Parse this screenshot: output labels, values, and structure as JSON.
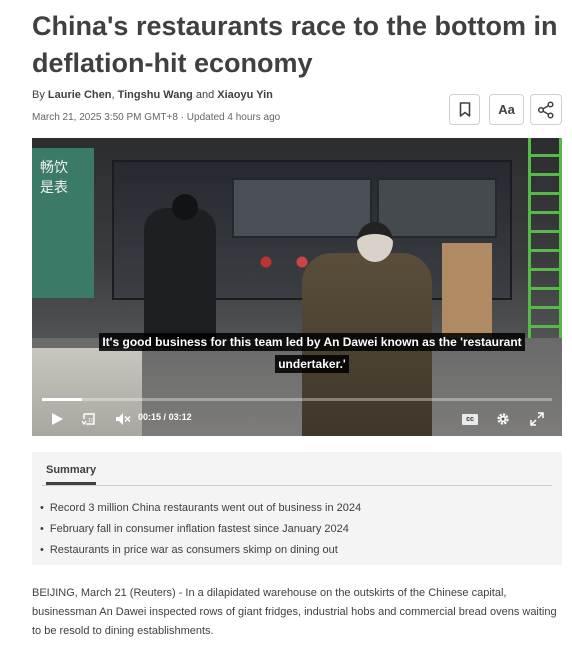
{
  "article": {
    "headline": "China's restaurants race to the bottom in deflation-hit economy",
    "byline": {
      "prefix": "By",
      "author1": "Laurie Chen",
      "author2": "Tingshu Wang",
      "conjunction": "and",
      "author3": "Xiaoyu Yin"
    },
    "dateline": "March 21, 2025 3:50 PM GMT+8 · Updated 4 hours ago"
  },
  "toolbar": {
    "bookmark_icon": "bookmark-icon",
    "text_size_label": "Aa",
    "share_icon": "share-icon"
  },
  "video": {
    "caption_line1": "It's good business for this team led by An Dawei known as the 'restaurant",
    "caption_line2": "undertaker.'",
    "current_time": "00:15",
    "separator": "/",
    "duration": "03:12",
    "progress_fraction": 0.078,
    "controls": [
      "play-icon",
      "replay-10-icon",
      "mute-icon",
      "cc-icon",
      "settings-gear-icon",
      "fullscreen-icon"
    ],
    "cc_label": "cc",
    "sign_text": "畅饮是表"
  },
  "summary": {
    "tab_label": "Summary",
    "items": [
      "Record 3 million China restaurants went out of business in 2024",
      "February fall in consumer inflation fastest since January 2024",
      "Restaurants in price war as consumers skimp on dining out"
    ]
  },
  "body": {
    "paragraph1": "BEIJING, March 21 (Reuters) - In a dilapidated warehouse on the outskirts of the Chinese capital, businessman An Dawei inspected rows of giant fridges, industrial hobs and commercial bread ovens waiting to be resold to dining establishments."
  },
  "colors": {
    "text": "#404040",
    "summary_bg": "#f4f4f4",
    "caption_bg": "#000000"
  }
}
